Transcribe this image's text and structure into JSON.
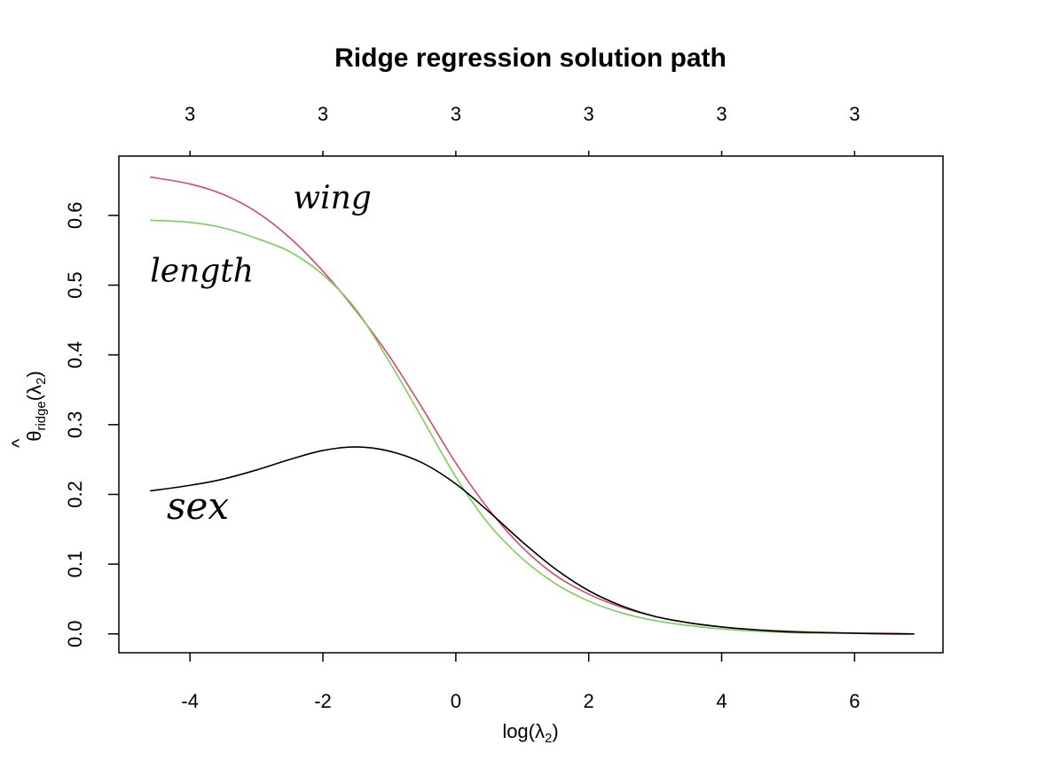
{
  "chart_data": {
    "type": "line",
    "title": "Ridge regression solution path",
    "xlabel": "log(λ₂)",
    "ylabel": "θ̂ridge(λ₂)",
    "ylabel_parts": {
      "hat": "^",
      "theta": "θ",
      "sub": "ridge",
      "open": "(",
      "lambda": "λ",
      "lsub": "2",
      "close": ")"
    },
    "xlabel_parts": {
      "log": "log(",
      "lambda": "λ",
      "sub": "2",
      "close": ")"
    },
    "xlim": [
      -5.07,
      7.33
    ],
    "ylim": [
      -0.027,
      0.685
    ],
    "x_ticks": [
      -4,
      -2,
      0,
      2,
      4,
      6
    ],
    "x_tick_labels": [
      "-4",
      "-2",
      "0",
      "2",
      "4",
      "6"
    ],
    "y_ticks": [
      0.0,
      0.1,
      0.2,
      0.3,
      0.4,
      0.5,
      0.6
    ],
    "y_tick_labels": [
      "0.0",
      "0.1",
      "0.2",
      "0.3",
      "0.4",
      "0.5",
      "0.6"
    ],
    "top_ticks": [
      -4,
      -2,
      0,
      2,
      4,
      6
    ],
    "top_tick_labels": [
      "3",
      "3",
      "3",
      "3",
      "3",
      "3"
    ],
    "grid": false,
    "legend": "none",
    "series": [
      {
        "name": "wing",
        "color": "#d6496b",
        "x": [
          -4.6,
          -4.0,
          -3.5,
          -3.0,
          -2.5,
          -2.0,
          -1.5,
          -1.0,
          -0.5,
          0.0,
          0.5,
          1.0,
          1.5,
          2.0,
          2.5,
          3.0,
          3.5,
          4.0,
          4.5,
          5.0,
          5.5,
          6.0,
          6.5,
          6.9
        ],
        "values": [
          0.655,
          0.645,
          0.63,
          0.605,
          0.568,
          0.52,
          0.463,
          0.398,
          0.323,
          0.245,
          0.178,
          0.124,
          0.084,
          0.057,
          0.038,
          0.025,
          0.016,
          0.01,
          0.006,
          0.004,
          0.002,
          0.001,
          0.001,
          0.0
        ]
      },
      {
        "name": "length",
        "color": "#7cce5c",
        "x": [
          -4.6,
          -4.0,
          -3.5,
          -3.0,
          -2.5,
          -2.0,
          -1.5,
          -1.0,
          -0.5,
          0.0,
          0.5,
          1.0,
          1.5,
          2.0,
          2.5,
          3.0,
          3.5,
          4.0,
          4.5,
          5.0,
          5.5,
          6.0,
          6.5,
          6.9
        ],
        "values": [
          0.593,
          0.59,
          0.582,
          0.567,
          0.548,
          0.515,
          0.465,
          0.39,
          0.308,
          0.225,
          0.157,
          0.108,
          0.072,
          0.047,
          0.03,
          0.019,
          0.012,
          0.007,
          0.004,
          0.002,
          0.001,
          0.001,
          0.0,
          0.0
        ]
      },
      {
        "name": "sex",
        "color": "#000000",
        "x": [
          -4.6,
          -4.0,
          -3.5,
          -3.0,
          -2.5,
          -2.0,
          -1.5,
          -1.0,
          -0.5,
          0.0,
          0.5,
          1.0,
          1.5,
          2.0,
          2.5,
          3.0,
          3.5,
          4.0,
          4.5,
          5.0,
          5.5,
          6.0,
          6.5,
          6.9
        ],
        "values": [
          0.205,
          0.213,
          0.222,
          0.235,
          0.25,
          0.263,
          0.268,
          0.262,
          0.245,
          0.215,
          0.175,
          0.132,
          0.093,
          0.062,
          0.04,
          0.025,
          0.016,
          0.01,
          0.006,
          0.003,
          0.002,
          0.001,
          0.0,
          0.0
        ]
      }
    ],
    "annotations": [
      {
        "text": "wing",
        "x": -2.45,
        "y": 0.61
      },
      {
        "text": "length",
        "x": -4.6,
        "y": 0.505
      },
      {
        "text": "sex",
        "x": -4.35,
        "y": 0.165
      }
    ]
  }
}
